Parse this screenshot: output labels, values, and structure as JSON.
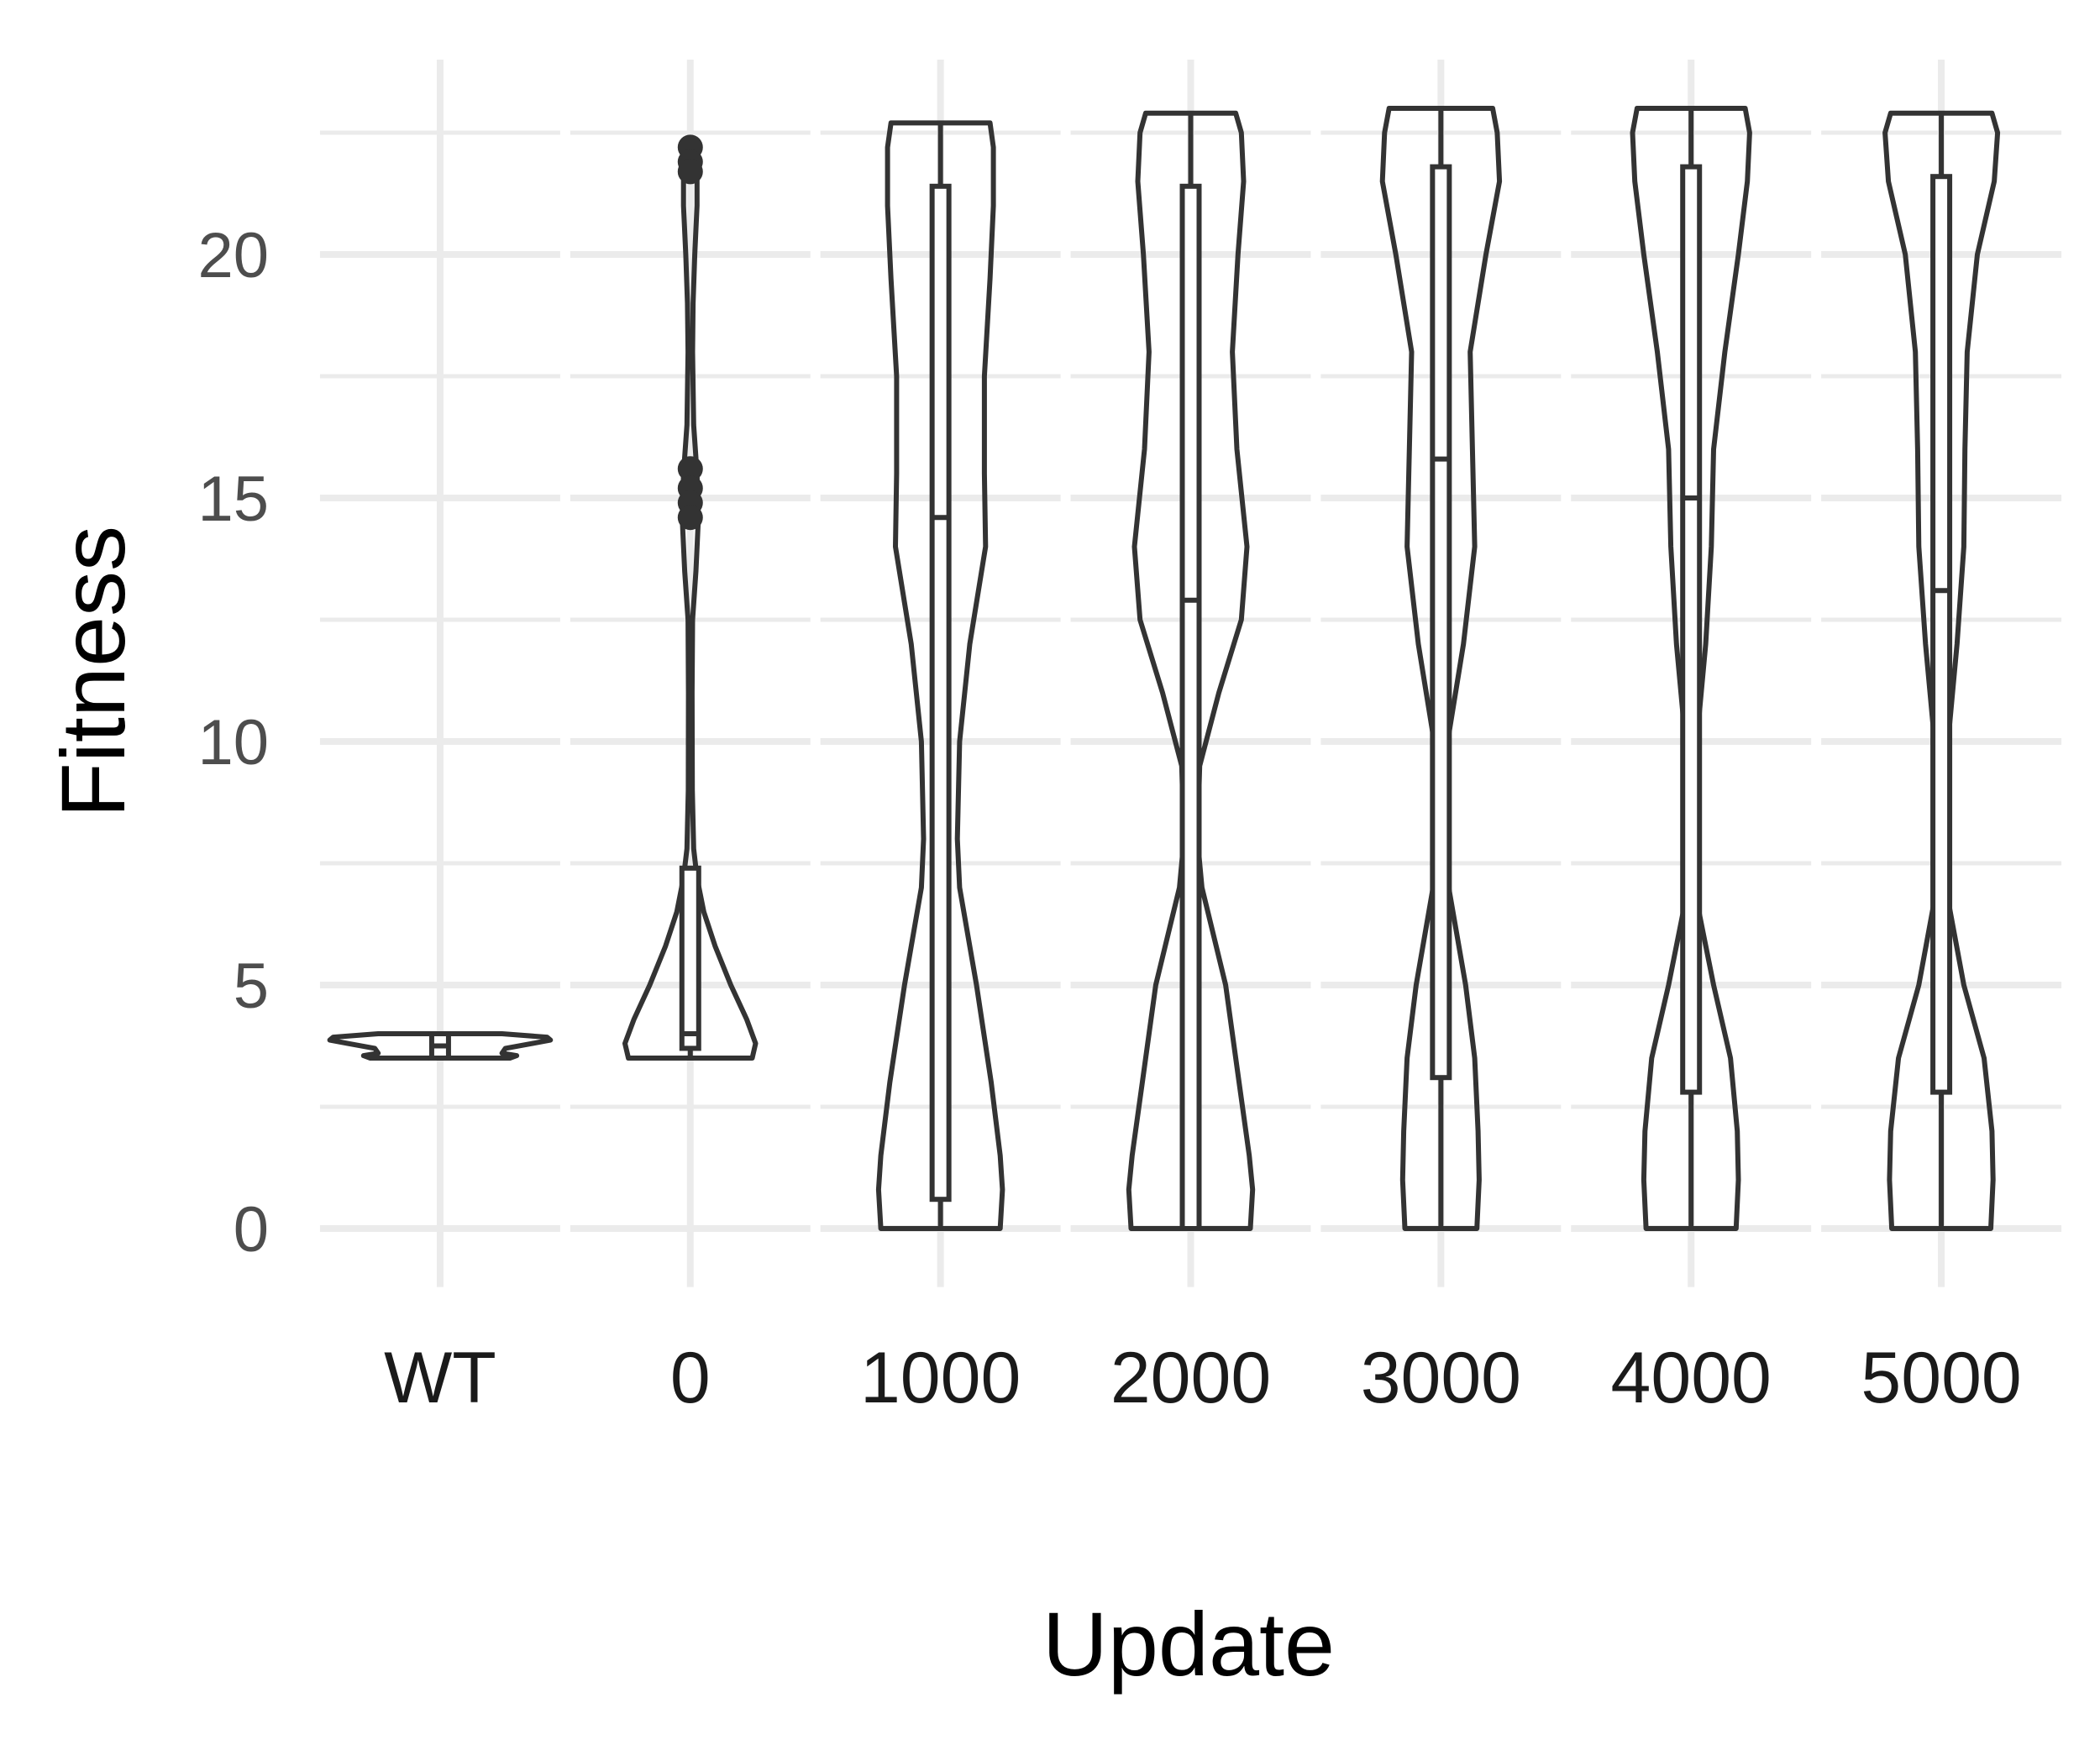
{
  "chart_data": {
    "type": "violin",
    "xlabel": "Update",
    "ylabel": "Fitness",
    "ylim": [
      -1.2,
      24
    ],
    "yticks": [
      0,
      5,
      10,
      15,
      20
    ],
    "grid": true,
    "categories": [
      "WT",
      "0",
      "1000",
      "2000",
      "3000",
      "4000",
      "5000"
    ],
    "groups": [
      {
        "category": "WT",
        "ymin": 3.5,
        "ymax": 4.0,
        "box": {
          "q1": 3.5,
          "median": 3.75,
          "q3": 4.0,
          "lower": 3.5,
          "upper": 4.0
        },
        "profile": [
          [
            3.5,
            0.62
          ],
          [
            3.55,
            0.68
          ],
          [
            3.6,
            0.55
          ],
          [
            3.7,
            0.58
          ],
          [
            3.8,
            0.82
          ],
          [
            3.87,
            0.98
          ],
          [
            3.93,
            0.95
          ],
          [
            4.0,
            0.55
          ]
        ],
        "outliers": []
      },
      {
        "category": "0",
        "ymin": 3.5,
        "ymax": 22.3,
        "box": {
          "q1": 3.7,
          "median": 4.0,
          "q3": 7.4,
          "lower": 3.5,
          "upper": 7.4
        },
        "profile": [
          [
            3.5,
            0.55
          ],
          [
            3.8,
            0.58
          ],
          [
            4.3,
            0.5
          ],
          [
            5.0,
            0.36
          ],
          [
            5.8,
            0.22
          ],
          [
            6.5,
            0.12
          ],
          [
            7.2,
            0.06
          ],
          [
            7.8,
            0.03
          ],
          [
            9.0,
            0.018
          ],
          [
            11.0,
            0.016
          ],
          [
            12.5,
            0.02
          ],
          [
            13.5,
            0.05
          ],
          [
            14.5,
            0.07
          ],
          [
            15.5,
            0.06
          ],
          [
            16.5,
            0.03
          ],
          [
            18.0,
            0.02
          ],
          [
            19.0,
            0.025
          ],
          [
            20.0,
            0.04
          ],
          [
            21.0,
            0.06
          ],
          [
            21.7,
            0.06
          ],
          [
            22.3,
            0.03
          ]
        ],
        "outliers": [
          22.2,
          21.9,
          21.7,
          15.6,
          15.2,
          14.9,
          14.6
        ]
      },
      {
        "category": "1000",
        "ymin": 0,
        "ymax": 22.7,
        "box": {
          "q1": 0.6,
          "median": 14.6,
          "q3": 21.4,
          "lower": 0,
          "upper": 22.7
        },
        "profile": [
          [
            0,
            0.53
          ],
          [
            0.8,
            0.55
          ],
          [
            1.5,
            0.53
          ],
          [
            3,
            0.45
          ],
          [
            5,
            0.32
          ],
          [
            7,
            0.17
          ],
          [
            8,
            0.15
          ],
          [
            10,
            0.17
          ],
          [
            12,
            0.26
          ],
          [
            14,
            0.4
          ],
          [
            15.5,
            0.39
          ],
          [
            17.5,
            0.39
          ],
          [
            19.5,
            0.44
          ],
          [
            21,
            0.47
          ],
          [
            22.2,
            0.47
          ],
          [
            22.7,
            0.44
          ]
        ],
        "outliers": []
      },
      {
        "category": "2000",
        "ymin": 0,
        "ymax": 22.9,
        "box": {
          "q1": 0,
          "median": 12.9,
          "q3": 21.4,
          "lower": 0,
          "upper": 22.9
        },
        "profile": [
          [
            0,
            0.53
          ],
          [
            0.8,
            0.55
          ],
          [
            1.5,
            0.52
          ],
          [
            3,
            0.43
          ],
          [
            5,
            0.31
          ],
          [
            7,
            0.1
          ],
          [
            8,
            0.06
          ],
          [
            9.5,
            0.08
          ],
          [
            11,
            0.25
          ],
          [
            12.5,
            0.45
          ],
          [
            14,
            0.5
          ],
          [
            16,
            0.41
          ],
          [
            18,
            0.37
          ],
          [
            20,
            0.42
          ],
          [
            21.5,
            0.47
          ],
          [
            22.5,
            0.45
          ],
          [
            22.9,
            0.4
          ]
        ],
        "outliers": []
      },
      {
        "category": "3000",
        "ymin": 0,
        "ymax": 23.0,
        "box": {
          "q1": 3.1,
          "median": 15.8,
          "q3": 21.8,
          "lower": 0,
          "upper": 23.0
        },
        "profile": [
          [
            0,
            0.32
          ],
          [
            1,
            0.34
          ],
          [
            2,
            0.33
          ],
          [
            3.5,
            0.3
          ],
          [
            5,
            0.22
          ],
          [
            7,
            0.07
          ],
          [
            8,
            0.04
          ],
          [
            10,
            0.06
          ],
          [
            12,
            0.2
          ],
          [
            14,
            0.3
          ],
          [
            16,
            0.28
          ],
          [
            18,
            0.26
          ],
          [
            20,
            0.4
          ],
          [
            21.5,
            0.52
          ],
          [
            22.5,
            0.5
          ],
          [
            23.0,
            0.46
          ]
        ],
        "outliers": []
      },
      {
        "category": "4000",
        "ymin": 0,
        "ymax": 23.0,
        "box": {
          "q1": 2.8,
          "median": 15.0,
          "q3": 21.8,
          "lower": 0,
          "upper": 23.0
        },
        "profile": [
          [
            0,
            0.4
          ],
          [
            1,
            0.42
          ],
          [
            2,
            0.41
          ],
          [
            3.5,
            0.35
          ],
          [
            5,
            0.2
          ],
          [
            6.5,
            0.07
          ],
          [
            8,
            0.02
          ],
          [
            10,
            0.05
          ],
          [
            12,
            0.13
          ],
          [
            14,
            0.18
          ],
          [
            16,
            0.2
          ],
          [
            18,
            0.3
          ],
          [
            20,
            0.42
          ],
          [
            21.5,
            0.5
          ],
          [
            22.5,
            0.52
          ],
          [
            23.0,
            0.48
          ]
        ],
        "outliers": []
      },
      {
        "category": "5000",
        "ymin": 0,
        "ymax": 22.9,
        "box": {
          "q1": 2.8,
          "median": 13.1,
          "q3": 21.6,
          "lower": 0,
          "upper": 22.9
        },
        "profile": [
          [
            0,
            0.44
          ],
          [
            1,
            0.46
          ],
          [
            2,
            0.45
          ],
          [
            3.5,
            0.38
          ],
          [
            5,
            0.2
          ],
          [
            7,
            0.04
          ],
          [
            8,
            0.03
          ],
          [
            10,
            0.06
          ],
          [
            12,
            0.14
          ],
          [
            14,
            0.2
          ],
          [
            16,
            0.21
          ],
          [
            18,
            0.23
          ],
          [
            20,
            0.32
          ],
          [
            21.5,
            0.47
          ],
          [
            22.5,
            0.5
          ],
          [
            22.9,
            0.45
          ]
        ],
        "outliers": []
      }
    ]
  }
}
